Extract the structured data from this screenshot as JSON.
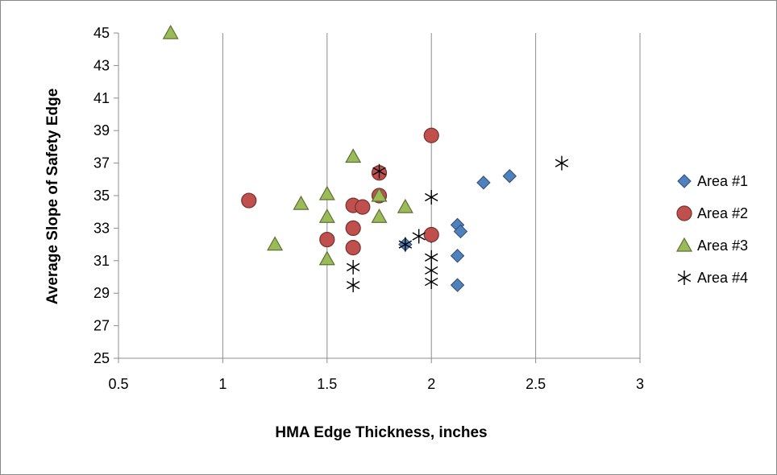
{
  "chart_data": {
    "type": "scatter",
    "xlabel": "HMA Edge Thickness, inches",
    "ylabel": "Average Slope of Safety Edge",
    "xlim": [
      0.5,
      3
    ],
    "ylim": [
      25,
      45
    ],
    "x_ticks": [
      "0.5",
      "1",
      "1.5",
      "2",
      "2.5",
      "3"
    ],
    "y_ticks": [
      "25",
      "27",
      "29",
      "31",
      "33",
      "35",
      "37",
      "39",
      "41",
      "43",
      "45"
    ],
    "x_tick_values": [
      0.5,
      1,
      1.5,
      2,
      2.5,
      3
    ],
    "y_tick_values": [
      25,
      27,
      29,
      31,
      33,
      35,
      37,
      39,
      41,
      43,
      45
    ],
    "grid": "vertical gridlines at x ticks; y-axis tick marks only",
    "legend_position": "right",
    "series": [
      {
        "name": "Area #1",
        "marker": "diamond",
        "color": "#4F81BD",
        "points": [
          [
            1.875,
            32.0
          ],
          [
            2.0,
            32.5
          ],
          [
            2.125,
            33.2
          ],
          [
            2.125,
            31.3
          ],
          [
            2.125,
            29.5
          ],
          [
            2.14,
            32.8
          ],
          [
            2.25,
            35.8
          ],
          [
            2.375,
            36.2
          ]
        ]
      },
      {
        "name": "Area #2",
        "marker": "circle",
        "color": "#C0504D",
        "points": [
          [
            1.125,
            34.7
          ],
          [
            1.5,
            32.3
          ],
          [
            1.625,
            34.4
          ],
          [
            1.625,
            33.0
          ],
          [
            1.625,
            31.8
          ],
          [
            1.67,
            34.3
          ],
          [
            1.75,
            36.4
          ],
          [
            1.75,
            35.0
          ],
          [
            2.0,
            38.7
          ],
          [
            2.0,
            32.6
          ]
        ]
      },
      {
        "name": "Area #3",
        "marker": "triangle",
        "color": "#9BBB59",
        "points": [
          [
            0.75,
            45.0
          ],
          [
            1.25,
            32.0
          ],
          [
            1.375,
            34.5
          ],
          [
            1.5,
            35.1
          ],
          [
            1.5,
            33.7
          ],
          [
            1.5,
            31.1
          ],
          [
            1.625,
            37.4
          ],
          [
            1.75,
            35.0
          ],
          [
            1.75,
            33.7
          ],
          [
            1.875,
            34.3
          ]
        ]
      },
      {
        "name": "Area #4",
        "marker": "star",
        "color": "#000000",
        "points": [
          [
            1.625,
            30.6
          ],
          [
            1.625,
            29.5
          ],
          [
            1.75,
            36.5
          ],
          [
            1.875,
            32.0
          ],
          [
            1.94,
            32.5
          ],
          [
            2.0,
            34.9
          ],
          [
            2.0,
            31.2
          ],
          [
            2.0,
            30.4
          ],
          [
            2.0,
            29.7
          ],
          [
            2.625,
            37.0
          ]
        ]
      }
    ]
  }
}
